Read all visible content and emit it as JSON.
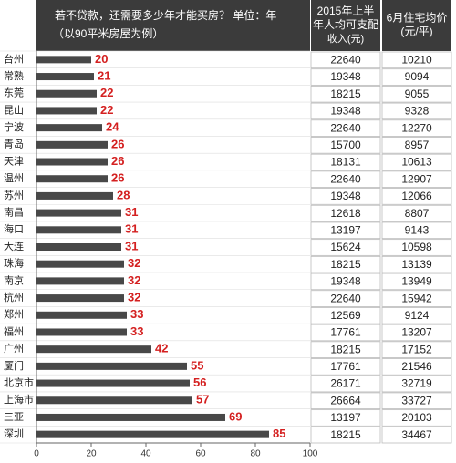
{
  "chart_data": {
    "type": "bar",
    "title": "若不贷款，还需要多少年才能买房？ 单位：年",
    "subtitle": "（以90平米房屋为例）",
    "categories": [
      "台州",
      "常熟",
      "东莞",
      "昆山",
      "宁波",
      "青岛",
      "天津",
      "温州",
      "苏州",
      "南昌",
      "海口",
      "大连",
      "珠海",
      "南京",
      "杭州",
      "郑州",
      "福州",
      "广州",
      "厦门",
      "北京市",
      "上海市",
      "三亚",
      "深圳"
    ],
    "values": [
      20,
      21,
      22,
      22,
      24,
      26,
      26,
      26,
      28,
      31,
      31,
      31,
      32,
      32,
      32,
      33,
      33,
      42,
      55,
      56,
      57,
      69,
      85
    ],
    "color": "#484848",
    "label_color": "#d42020",
    "xlim": [
      0,
      100
    ],
    "xticks": [
      0,
      20,
      40,
      60,
      80,
      100
    ],
    "table": {
      "columns": [
        {
          "header": [
            "2015年上半",
            "年人均可支配",
            "收入(元)"
          ],
          "values": [
            22640,
            19348,
            18215,
            19348,
            22640,
            15700,
            18131,
            22640,
            19348,
            12618,
            13197,
            15624,
            18215,
            19348,
            22640,
            12569,
            17761,
            18215,
            17761,
            26171,
            26664,
            13197,
            18215
          ]
        },
        {
          "header": [
            "6月住宅均价",
            "(元/平)"
          ],
          "values": [
            10210,
            9094,
            9055,
            9328,
            12270,
            8957,
            10613,
            12907,
            12066,
            8807,
            9143,
            10598,
            13139,
            13949,
            15942,
            9124,
            13207,
            17152,
            21546,
            32719,
            33727,
            20103,
            34467
          ]
        }
      ]
    }
  }
}
